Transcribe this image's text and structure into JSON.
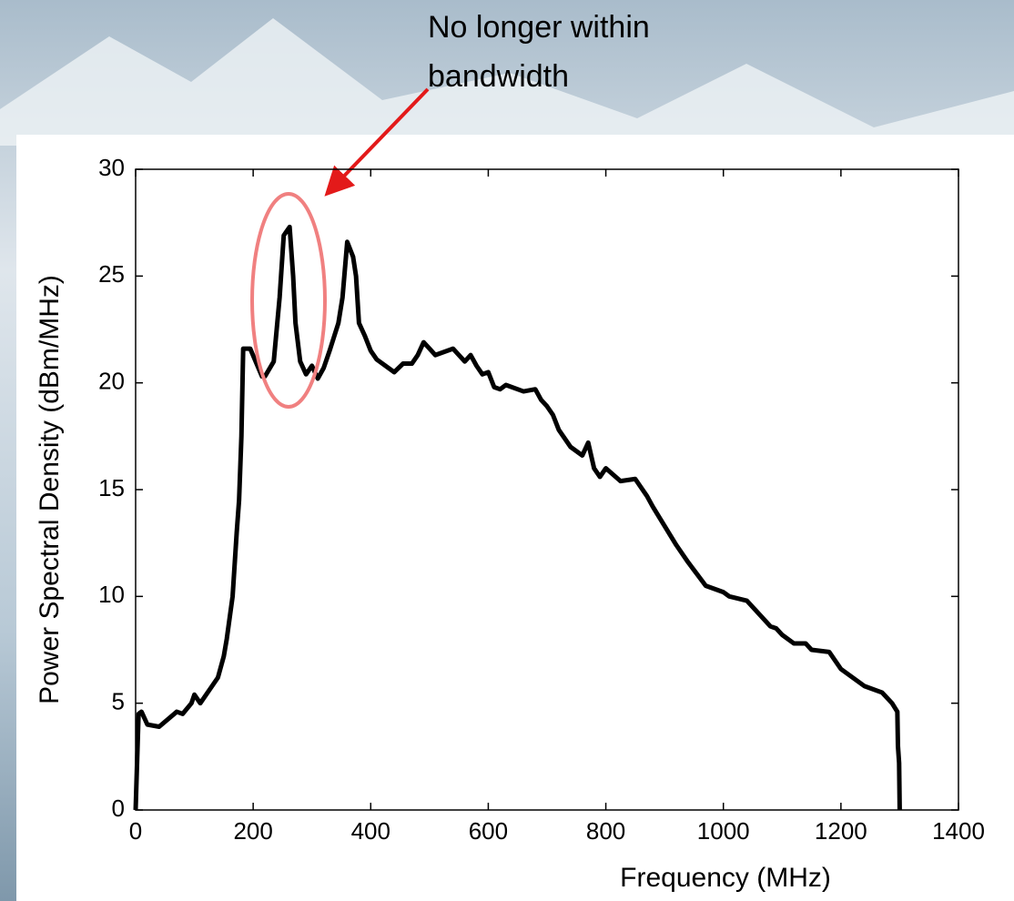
{
  "chart_data": {
    "type": "line",
    "annotation": [
      "No longer within",
      "bandwidth"
    ],
    "xlabel": "Frequency (MHz)",
    "ylabel": "Power Spectral Density (dBm/MHz)",
    "x": [
      0,
      5,
      10,
      20,
      40,
      70,
      80,
      95,
      100,
      110,
      140,
      150,
      155,
      165,
      172,
      176,
      178,
      180,
      183,
      195,
      215,
      220,
      235,
      245,
      252,
      262,
      268,
      272,
      280,
      290,
      300,
      310,
      320,
      330,
      345,
      352,
      360,
      370,
      375,
      380,
      390,
      400,
      410,
      440,
      455,
      470,
      480,
      490,
      500,
      510,
      540,
      560,
      570,
      580,
      590,
      600,
      610,
      620,
      630,
      660,
      680,
      690,
      700,
      710,
      720,
      740,
      760,
      770,
      780,
      790,
      800,
      825,
      850,
      870,
      880,
      900,
      920,
      940,
      970,
      1000,
      1010,
      1040,
      1080,
      1090,
      1100,
      1120,
      1140,
      1150,
      1180,
      1200,
      1220,
      1240,
      1270,
      1287,
      1296,
      1297,
      1299,
      1300
    ],
    "values": [
      0,
      4.5,
      4.6,
      4.0,
      3.9,
      4.6,
      4.5,
      5.0,
      5.4,
      5.0,
      6.2,
      7.2,
      8.0,
      10,
      13,
      14.5,
      16,
      17.5,
      21.6,
      21.6,
      20.3,
      20.3,
      21,
      24,
      26.9,
      27.3,
      25,
      22.8,
      21,
      20.4,
      20.8,
      20.2,
      20.7,
      21.5,
      22.8,
      24,
      26.6,
      25.9,
      25,
      22.8,
      22.2,
      21.5,
      21.1,
      20.5,
      20.9,
      20.9,
      21.3,
      21.9,
      21.6,
      21.3,
      21.6,
      21.0,
      21.3,
      20.8,
      20.4,
      20.5,
      19.8,
      19.7,
      19.9,
      19.6,
      19.7,
      19.2,
      18.9,
      18.5,
      17.8,
      17.0,
      16.6,
      17.2,
      16.0,
      15.6,
      16.0,
      15.4,
      15.5,
      14.7,
      14.2,
      13.3,
      12.4,
      11.6,
      10.5,
      10.2,
      10.0,
      9.8,
      8.6,
      8.5,
      8.2,
      7.8,
      7.8,
      7.5,
      7.4,
      6.6,
      6.2,
      5.8,
      5.5,
      5.0,
      4.6,
      3.0,
      2.2,
      0
    ],
    "color": "#000000",
    "xlim": [
      0,
      1400
    ],
    "xticks": [
      0,
      200,
      400,
      600,
      800,
      1000,
      1200,
      1400
    ],
    "ylim": [
      0,
      30
    ],
    "yticks": [
      0,
      5,
      10,
      15,
      20,
      25,
      30
    ]
  }
}
